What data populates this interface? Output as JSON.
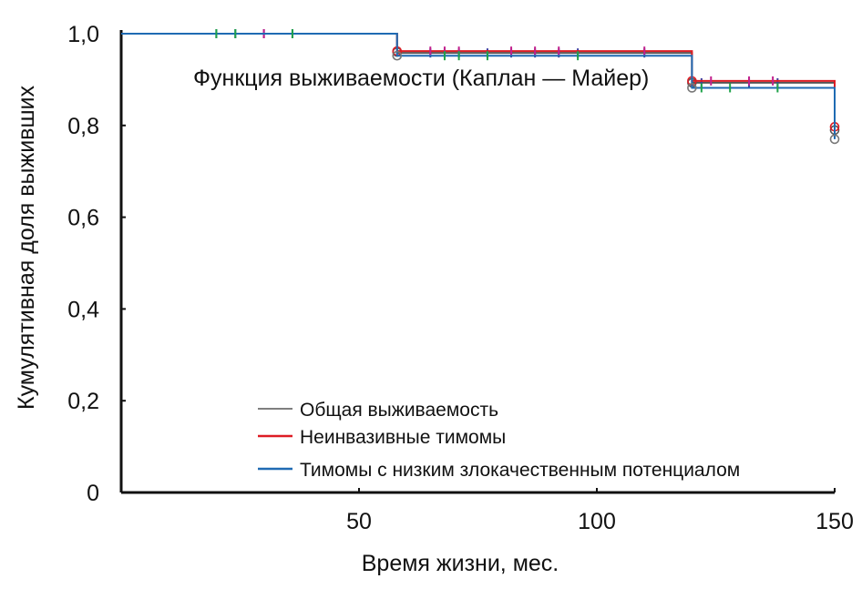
{
  "chart_data": {
    "type": "line",
    "step": true,
    "title": "Функция выживаемости (Каплан — Майер)",
    "xlabel": "Время жизни, мес.",
    "ylabel": "Кумулятивная доля выживших",
    "xlim": [
      0,
      150
    ],
    "ylim": [
      0,
      1
    ],
    "x_ticks": [
      {
        "value": 50,
        "label": "50"
      },
      {
        "value": 100,
        "label": "100"
      },
      {
        "value": 150,
        "label": "150"
      }
    ],
    "y_ticks": [
      {
        "value": 0,
        "label": "0"
      },
      {
        "value": 0.2,
        "label": "0,2"
      },
      {
        "value": 0.4,
        "label": "0,4"
      },
      {
        "value": 0.6,
        "label": "0,6"
      },
      {
        "value": 0.8,
        "label": "0,8"
      },
      {
        "value": 1.0,
        "label": "1,0"
      }
    ],
    "grid": false,
    "legend_position": "bottom-right",
    "series": [
      {
        "name": "Общая выживаемость",
        "color": "#555555",
        "steps": [
          [
            0,
            1.0
          ],
          [
            58,
            0.958
          ],
          [
            120,
            0.893
          ],
          [
            150,
            0.893
          ]
        ],
        "censored": [
          20,
          24,
          30,
          36,
          65,
          68,
          71,
          77,
          82,
          87,
          92,
          96,
          110,
          122,
          132,
          138
        ],
        "events": [
          [
            58,
            0.96
          ],
          [
            120,
            0.893
          ],
          [
            150,
            0.79
          ]
        ]
      },
      {
        "name": "Неинвазивные тимомы",
        "color": "#dd1c24",
        "steps": [
          [
            0,
            1.0
          ],
          [
            58,
            0.962
          ],
          [
            120,
            0.897
          ],
          [
            150,
            0.897
          ]
        ],
        "censored": [
          30,
          65,
          68,
          71,
          82,
          87,
          92,
          110,
          124,
          132,
          137
        ],
        "events": [
          [
            58,
            0.962
          ],
          [
            120,
            0.897
          ],
          [
            150,
            0.797
          ]
        ]
      },
      {
        "name": "Тимомы с низким злокачественным потенциалом",
        "color": "#1f6bb3",
        "steps": [
          [
            0,
            1.0
          ],
          [
            58,
            0.952
          ],
          [
            120,
            0.882
          ],
          [
            150,
            0.882
          ]
        ],
        "censored": [
          20,
          24,
          36,
          68,
          71,
          77,
          96,
          122,
          128,
          138
        ],
        "events": [
          [
            58,
            0.952
          ],
          [
            120,
            0.882
          ],
          [
            150,
            0.77
          ]
        ]
      }
    ]
  }
}
